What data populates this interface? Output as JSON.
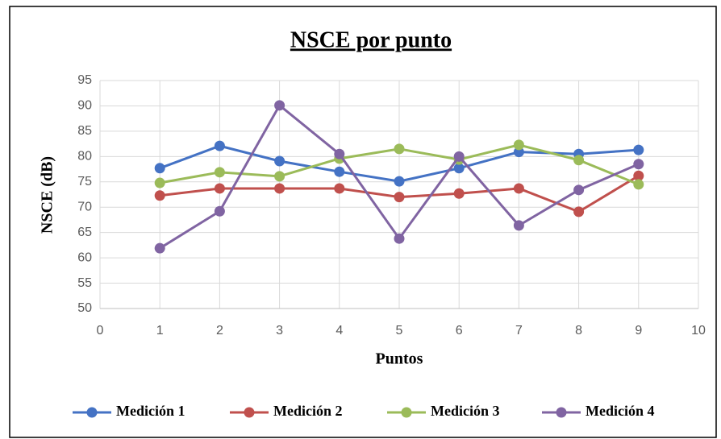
{
  "chart_data": {
    "type": "line",
    "title": "NSCE por punto",
    "x_label": "Puntos",
    "y_label": "NSCE (dB)",
    "x": [
      1,
      2,
      3,
      4,
      5,
      6,
      7,
      8,
      9
    ],
    "series": [
      {
        "name": "Medición 1",
        "color": "#4472c4",
        "values": [
          77.7,
          82.1,
          79.1,
          77.0,
          75.1,
          77.7,
          80.9,
          80.5,
          81.3
        ]
      },
      {
        "name": "Medición 2",
        "color": "#c0504d",
        "values": [
          72.3,
          73.7,
          73.7,
          73.7,
          72.0,
          72.7,
          73.7,
          69.1,
          76.2
        ]
      },
      {
        "name": "Medición 3",
        "color": "#9bbb59",
        "values": [
          74.8,
          76.9,
          76.1,
          79.6,
          81.5,
          79.4,
          82.3,
          79.3,
          74.5
        ]
      },
      {
        "name": "Medición 4",
        "color": "#8064a2",
        "values": [
          61.9,
          69.2,
          90.1,
          80.5,
          63.8,
          80.0,
          66.4,
          73.4,
          78.5
        ]
      }
    ],
    "xlim": [
      0,
      10
    ],
    "xticks": [
      0,
      1,
      2,
      3,
      4,
      5,
      6,
      7,
      8,
      9,
      10
    ],
    "ylim": [
      50,
      95
    ],
    "yticks": [
      50,
      55,
      60,
      65,
      70,
      75,
      80,
      85,
      90,
      95
    ],
    "grid": true,
    "legend": "bottom"
  }
}
